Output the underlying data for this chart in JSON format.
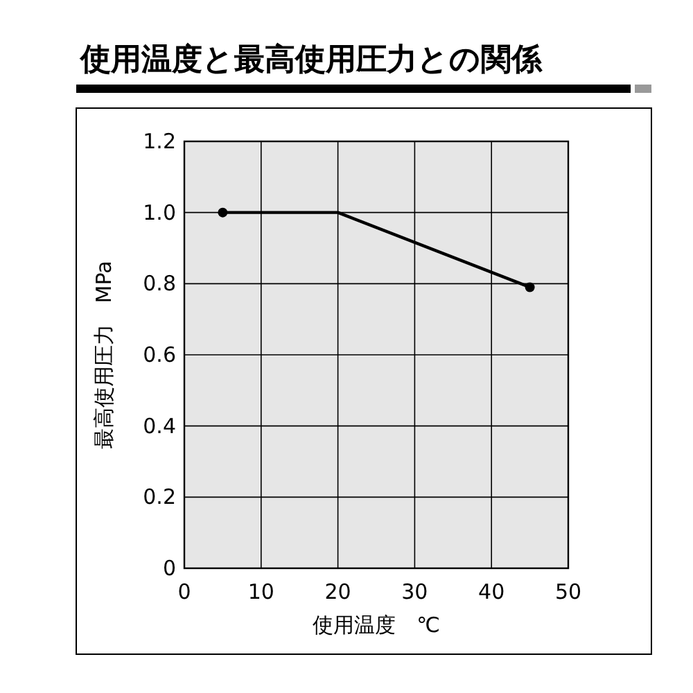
{
  "chart_data": {
    "type": "line",
    "title": "使用温度と最高使用圧力との関係",
    "xlabel": "使用温度　℃",
    "ylabel": "最高使用圧力　MPa",
    "xlim": [
      0,
      50
    ],
    "xticks": [
      0,
      10,
      20,
      30,
      40,
      50
    ],
    "ylim": [
      0,
      1.2
    ],
    "yticks": [
      0,
      0.2,
      0.4,
      0.6,
      0.8,
      {
        "value": 1,
        "label": "1.0"
      },
      1.2
    ],
    "grid": true,
    "series": [
      {
        "type": "line",
        "color": "#000000",
        "x": [
          5,
          20,
          45
        ],
        "values": [
          1.0,
          1.0,
          0.79
        ],
        "marker": "none"
      },
      {
        "type": "scatter",
        "color": "#000000",
        "x": [
          5,
          45
        ],
        "values": [
          1.0,
          0.79
        ],
        "marker": "circle"
      }
    ]
  }
}
